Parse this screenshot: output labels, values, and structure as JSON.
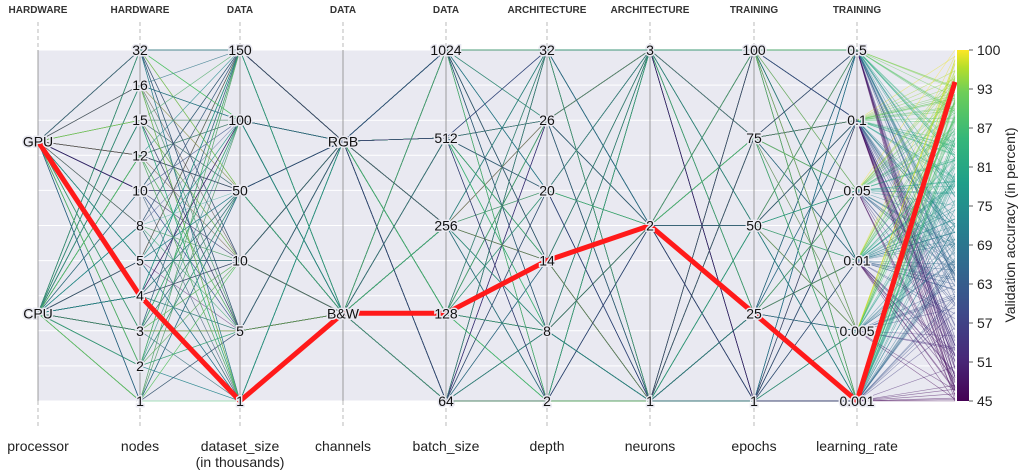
{
  "chart_data": {
    "type": "parallel_coordinates",
    "title": "",
    "axes": [
      {
        "name": "processor",
        "name_line2": "",
        "category": "HARDWARE",
        "ticks": [
          "GPU",
          "CPU"
        ],
        "tick_pos": [
          0.74,
          0.25
        ]
      },
      {
        "name": "nodes",
        "name_line2": "",
        "category": "HARDWARE",
        "ticks": [
          "32",
          "16",
          "15",
          "12",
          "10",
          "8",
          "5",
          "4",
          "3",
          "2",
          "1"
        ],
        "tick_pos": [
          1.0,
          0.9,
          0.8,
          0.7,
          0.6,
          0.5,
          0.4,
          0.3,
          0.2,
          0.1,
          0.0
        ]
      },
      {
        "name": "dataset_size",
        "name_line2": "(in thousands)",
        "category": "DATA",
        "ticks": [
          "150",
          "100",
          "50",
          "10",
          "5",
          "1"
        ],
        "tick_pos": [
          1.0,
          0.8,
          0.6,
          0.4,
          0.2,
          0.0
        ]
      },
      {
        "name": "channels",
        "name_line2": "",
        "category": "DATA",
        "ticks": [
          "RGB",
          "B&W"
        ],
        "tick_pos": [
          0.74,
          0.25
        ]
      },
      {
        "name": "batch_size",
        "name_line2": "",
        "category": "DATA",
        "ticks": [
          "1024",
          "512",
          "256",
          "128",
          "64"
        ],
        "tick_pos": [
          1.0,
          0.75,
          0.5,
          0.25,
          0.0
        ]
      },
      {
        "name": "depth",
        "name_line2": "",
        "category": "ARCHITECTURE",
        "ticks": [
          "32",
          "26",
          "20",
          "14",
          "8",
          "2"
        ],
        "tick_pos": [
          1.0,
          0.8,
          0.6,
          0.4,
          0.2,
          0.0
        ]
      },
      {
        "name": "neurons",
        "name_line2": "",
        "category": "ARCHITECTURE",
        "ticks": [
          "3",
          "2",
          "1"
        ],
        "tick_pos": [
          1.0,
          0.5,
          0.0
        ]
      },
      {
        "name": "epochs",
        "name_line2": "",
        "category": "TRAINING",
        "ticks": [
          "100",
          "75",
          "50",
          "25",
          "1"
        ],
        "tick_pos": [
          1.0,
          0.75,
          0.5,
          0.25,
          0.0
        ]
      },
      {
        "name": "learning_rate",
        "name_line2": "",
        "category": "TRAINING",
        "ticks": [
          "0.5",
          "0.1",
          "0.05",
          "0.01",
          "0.005",
          "0.001"
        ],
        "tick_pos": [
          1.0,
          0.8,
          0.6,
          0.4,
          0.2,
          0.0
        ]
      }
    ],
    "highlight": {
      "values": [
        "GPU",
        "4",
        "1",
        "B&W",
        "128",
        "14",
        "2",
        "25",
        "0.001"
      ],
      "accuracy": 95,
      "color": "#ff1a1a"
    },
    "colorbar": {
      "label": "Validation accuracy (in percent)",
      "ticks": [
        "100",
        "93",
        "87",
        "81",
        "75",
        "69",
        "63",
        "57",
        "51",
        "45"
      ],
      "min": 45,
      "max": 100,
      "colormap": "viridis"
    },
    "background_color": "#e9e9f1",
    "grid": true
  }
}
